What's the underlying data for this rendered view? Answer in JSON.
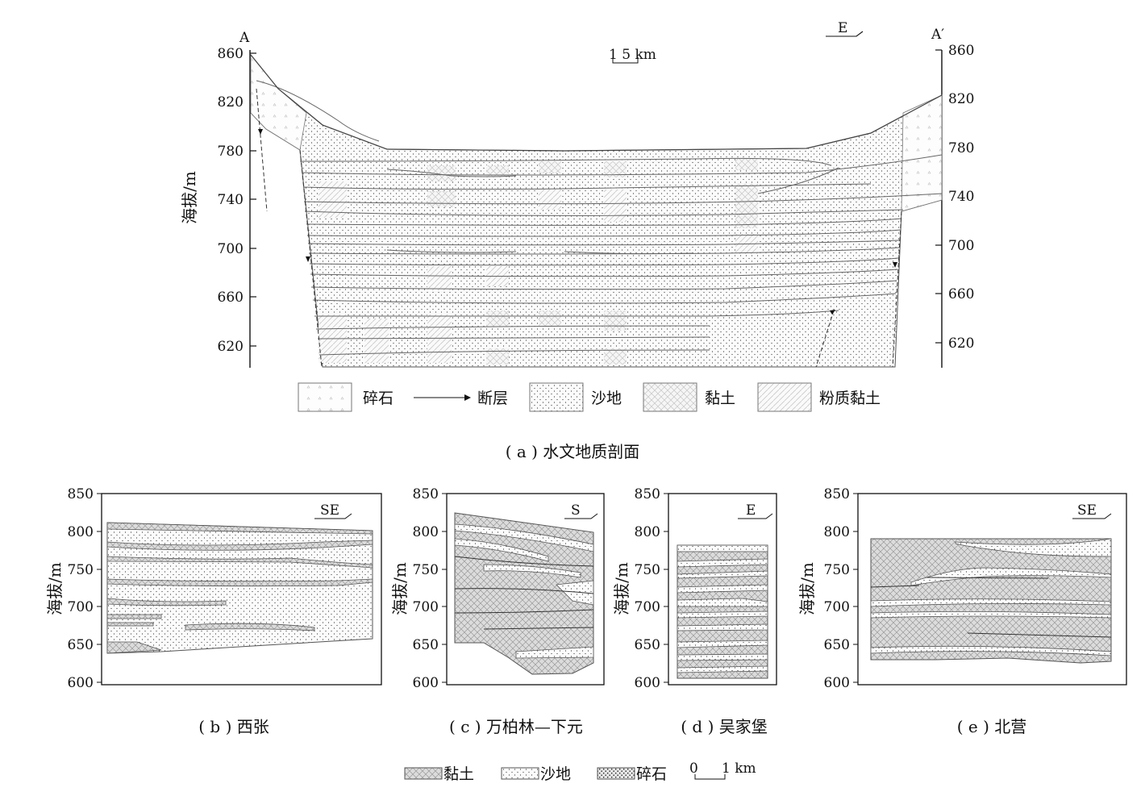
{
  "panel_a": {
    "left_end_label": "A",
    "right_end_label": "A′",
    "direction_label": "E",
    "scale_label": "1  5 km",
    "y_axis_label": "海拔/m",
    "y_ticks": [
      "860",
      "820",
      "780",
      "740",
      "700",
      "660",
      "620"
    ],
    "legend": {
      "gravel": "碎石",
      "fault": "断层",
      "sand": "沙地",
      "clay": "黏土",
      "silty_clay": "粉质黏土"
    },
    "caption": "( a ) 水文地质剖面"
  },
  "small_panels": [
    {
      "caption": "( b ) 西张",
      "direction": "SE",
      "y_label": "海拔/m",
      "ticks": [
        "850",
        "800",
        "750",
        "700",
        "650",
        "600"
      ]
    },
    {
      "caption": "( c ) 万柏林—下元",
      "direction": "S",
      "y_label": "海拔/m",
      "ticks": [
        "850",
        "800",
        "750",
        "700",
        "650",
        "600"
      ]
    },
    {
      "caption": "( d ) 吴家堡",
      "direction": "E",
      "y_label": "海拔/m",
      "ticks": [
        "850",
        "800",
        "750",
        "700",
        "650",
        "600"
      ]
    },
    {
      "caption": "( e ) 北营",
      "direction": "SE",
      "y_label": "海拔/m",
      "ticks": [
        "850",
        "800",
        "750",
        "700",
        "650",
        "600"
      ]
    }
  ],
  "bottom_legend": {
    "clay": "黏土",
    "sand": "沙地",
    "gravel": "碎石",
    "scale_zero": "0",
    "scale_one": "1 km"
  }
}
